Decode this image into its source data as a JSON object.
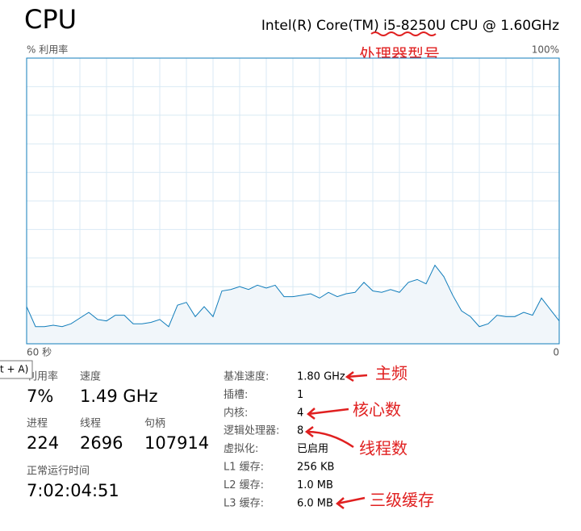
{
  "header": {
    "title": "CPU",
    "processor": "Intel(R) Core(TM) i5-8250U CPU @ 1.60GHz"
  },
  "graph": {
    "y_label": "% 利用率",
    "y_max_label": "100%",
    "x_start_label": "60 秒",
    "x_end_label": "0",
    "ylim": [
      0,
      100
    ],
    "values": [
      13,
      6,
      6,
      6.5,
      6,
      7,
      9,
      11,
      8.5,
      8,
      10,
      10,
      7,
      7,
      7.5,
      8.5,
      6,
      13.5,
      14.5,
      9.5,
      13,
      9.5,
      18.5,
      19,
      20,
      19,
      20.5,
      19.5,
      20.5,
      16.5,
      16.5,
      17,
      17.5,
      16,
      18,
      16.5,
      17.5,
      18,
      21.5,
      18.5,
      18,
      19,
      18,
      21.5,
      22.5,
      21,
      27.5,
      23.5,
      17,
      11.5,
      9.5,
      6,
      7,
      10,
      9.5,
      9.5,
      11,
      10,
      16,
      12,
      8
    ]
  },
  "tooltip": "t + A)",
  "stats": [
    {
      "label": "利用率",
      "value": "7%"
    },
    {
      "label": "速度",
      "value": "1.49 GHz"
    },
    {
      "label": "进程",
      "value": "224"
    },
    {
      "label": "线程",
      "value": "2696"
    },
    {
      "label": "句柄",
      "value": "107914"
    },
    {
      "label": "正常运行时间",
      "value": "7:02:04:51"
    }
  ],
  "details": [
    {
      "label": "基准速度:",
      "value": "1.80 GHz"
    },
    {
      "label": "插槽:",
      "value": "1"
    },
    {
      "label": "内核:",
      "value": "4"
    },
    {
      "label": "逻辑处理器:",
      "value": "8"
    },
    {
      "label": "虚拟化:",
      "value": "已启用"
    },
    {
      "label": "L1 缓存:",
      "value": "256 KB"
    },
    {
      "label": "L2 缓存:",
      "value": "1.0 MB"
    },
    {
      "label": "L3 缓存:",
      "value": "6.0 MB"
    }
  ],
  "annotations": {
    "model": "处理器型号",
    "base_speed": "主频",
    "cores": "核心数",
    "threads": "线程数",
    "l3": "三级缓存"
  }
}
